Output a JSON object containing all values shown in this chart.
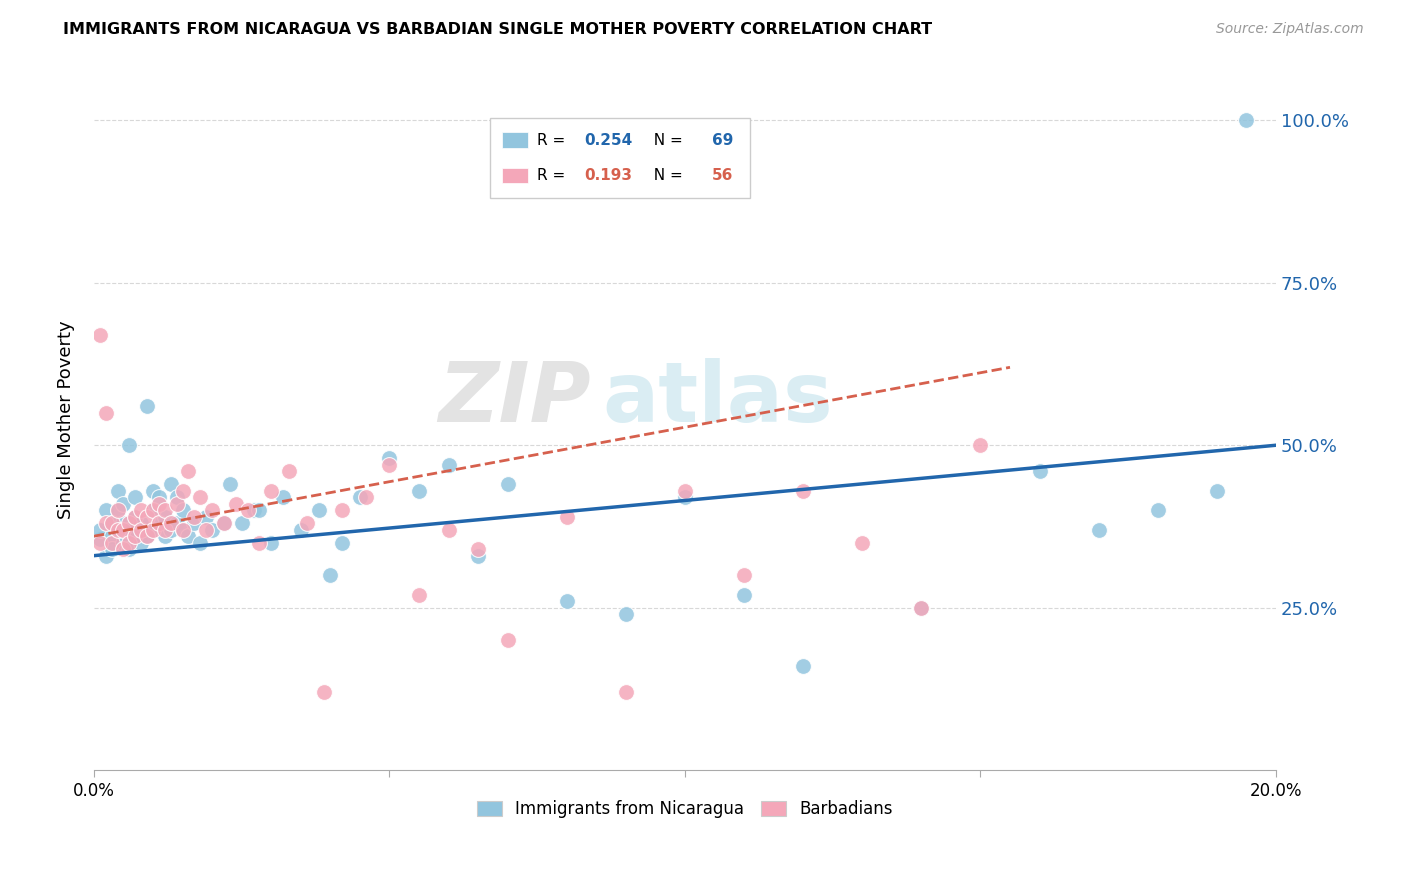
{
  "title": "IMMIGRANTS FROM NICARAGUA VS BARBADIAN SINGLE MOTHER POVERTY CORRELATION CHART",
  "source": "Source: ZipAtlas.com",
  "ylabel": "Single Mother Poverty",
  "ytick_labels": [
    "25.0%",
    "50.0%",
    "75.0%",
    "100.0%"
  ],
  "ytick_values": [
    0.25,
    0.5,
    0.75,
    1.0
  ],
  "xlim": [
    0.0,
    0.2
  ],
  "ylim": [
    0.0,
    1.08
  ],
  "blue_color": "#92c5de",
  "pink_color": "#f4a7b9",
  "blue_line_color": "#2166ac",
  "pink_line_color": "#d6604d",
  "blue_r": "0.254",
  "blue_n": "69",
  "pink_r": "0.193",
  "pink_n": "56",
  "blue_scatter_x": [
    0.001,
    0.001,
    0.002,
    0.002,
    0.003,
    0.003,
    0.003,
    0.004,
    0.004,
    0.004,
    0.005,
    0.005,
    0.005,
    0.006,
    0.006,
    0.006,
    0.007,
    0.007,
    0.007,
    0.008,
    0.008,
    0.009,
    0.009,
    0.01,
    0.01,
    0.01,
    0.011,
    0.011,
    0.012,
    0.012,
    0.013,
    0.013,
    0.014,
    0.014,
    0.015,
    0.015,
    0.016,
    0.017,
    0.018,
    0.019,
    0.02,
    0.022,
    0.023,
    0.025,
    0.027,
    0.028,
    0.03,
    0.032,
    0.035,
    0.038,
    0.04,
    0.042,
    0.045,
    0.05,
    0.055,
    0.06,
    0.065,
    0.07,
    0.08,
    0.09,
    0.1,
    0.11,
    0.12,
    0.14,
    0.16,
    0.17,
    0.18,
    0.19,
    0.195
  ],
  "blue_scatter_y": [
    0.355,
    0.37,
    0.4,
    0.33,
    0.36,
    0.38,
    0.34,
    0.37,
    0.4,
    0.43,
    0.35,
    0.38,
    0.41,
    0.34,
    0.37,
    0.5,
    0.36,
    0.39,
    0.42,
    0.35,
    0.38,
    0.36,
    0.56,
    0.37,
    0.4,
    0.43,
    0.38,
    0.42,
    0.36,
    0.39,
    0.37,
    0.44,
    0.38,
    0.42,
    0.37,
    0.4,
    0.36,
    0.38,
    0.35,
    0.39,
    0.37,
    0.38,
    0.44,
    0.38,
    0.4,
    0.4,
    0.35,
    0.42,
    0.37,
    0.4,
    0.3,
    0.35,
    0.42,
    0.48,
    0.43,
    0.47,
    0.33,
    0.44,
    0.26,
    0.24,
    0.42,
    0.27,
    0.16,
    0.25,
    0.46,
    0.37,
    0.4,
    0.43,
    1.0
  ],
  "pink_scatter_x": [
    0.001,
    0.001,
    0.002,
    0.002,
    0.003,
    0.003,
    0.004,
    0.004,
    0.005,
    0.005,
    0.006,
    0.006,
    0.007,
    0.007,
    0.008,
    0.008,
    0.009,
    0.009,
    0.01,
    0.01,
    0.011,
    0.011,
    0.012,
    0.012,
    0.013,
    0.014,
    0.015,
    0.015,
    0.016,
    0.017,
    0.018,
    0.019,
    0.02,
    0.022,
    0.024,
    0.026,
    0.028,
    0.03,
    0.033,
    0.036,
    0.039,
    0.042,
    0.046,
    0.05,
    0.055,
    0.06,
    0.065,
    0.07,
    0.08,
    0.09,
    0.1,
    0.11,
    0.12,
    0.13,
    0.14,
    0.15
  ],
  "pink_scatter_y": [
    0.67,
    0.35,
    0.38,
    0.55,
    0.35,
    0.38,
    0.37,
    0.4,
    0.34,
    0.37,
    0.35,
    0.38,
    0.36,
    0.39,
    0.37,
    0.4,
    0.36,
    0.39,
    0.37,
    0.4,
    0.38,
    0.41,
    0.37,
    0.4,
    0.38,
    0.41,
    0.37,
    0.43,
    0.46,
    0.39,
    0.42,
    0.37,
    0.4,
    0.38,
    0.41,
    0.4,
    0.35,
    0.43,
    0.46,
    0.38,
    0.12,
    0.4,
    0.42,
    0.47,
    0.27,
    0.37,
    0.34,
    0.2,
    0.39,
    0.12,
    0.43,
    0.3,
    0.43,
    0.35,
    0.25,
    0.5
  ],
  "blue_line_x": [
    0.0,
    0.2
  ],
  "blue_line_y": [
    0.33,
    0.5
  ],
  "pink_line_x": [
    0.0,
    0.155
  ],
  "pink_line_y": [
    0.36,
    0.62
  ],
  "background_color": "#ffffff",
  "grid_color": "#d8d8d8",
  "legend_label_blue": "Immigrants from Nicaragua",
  "legend_label_pink": "Barbadians"
}
